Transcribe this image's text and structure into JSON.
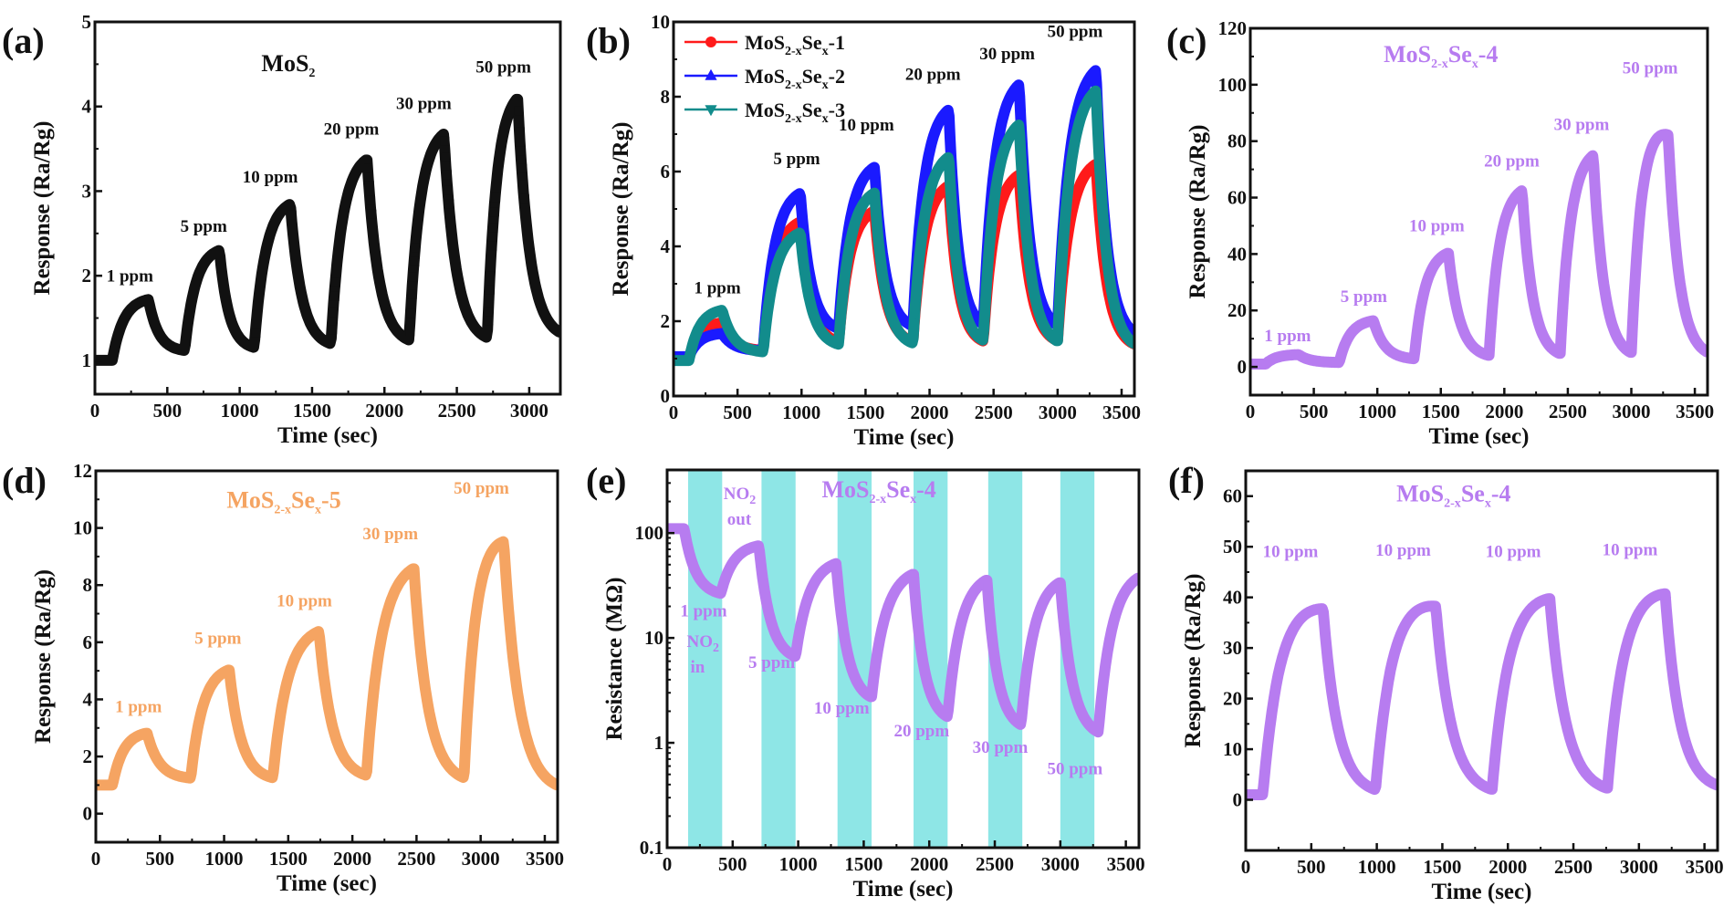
{
  "figure": {
    "colors": {
      "black": "#111111",
      "red": "#ff1a1a",
      "blue": "#1a1aff",
      "teal": "#128c8c",
      "purple": "#b77cf0",
      "orange": "#f5a462",
      "cyan_band": "#8ee6e6"
    }
  },
  "chart_data": [
    {
      "id": "a",
      "panel_label": "(a)",
      "type": "line",
      "title": "MoS2",
      "title_parts": {
        "base": "MoS",
        "sub": "2",
        "rest": ""
      },
      "title_color": "black",
      "xlabel": "Time (sec)",
      "ylabel": "Response (Ra/Rg)",
      "xlim": [
        0,
        3215
      ],
      "ylim": [
        0.6,
        5
      ],
      "xticks": [
        0,
        500,
        1000,
        1500,
        2000,
        2500,
        3000
      ],
      "yticks": [
        1,
        2,
        3,
        4,
        5
      ],
      "ytick_labels": [
        "1",
        "2",
        "3",
        "4",
        "5"
      ],
      "marker": "square",
      "series": [
        {
          "name": "MoS2",
          "color": "black",
          "baseline_start": 1.0,
          "cycles": [
            {
              "on": 120,
              "off": 370,
              "peak": 1.75,
              "recover_to": 1.1,
              "label": "1 ppm"
            },
            {
              "on": 620,
              "off": 860,
              "peak": 2.35,
              "recover_to": 1.12,
              "label": "5 ppm"
            },
            {
              "on": 1100,
              "off": 1350,
              "peak": 2.92,
              "recover_to": 1.15,
              "label": "10 ppm"
            },
            {
              "on": 1630,
              "off": 1880,
              "peak": 3.47,
              "recover_to": 1.18,
              "label": "20 ppm"
            },
            {
              "on": 2170,
              "off": 2410,
              "peak": 3.78,
              "recover_to": 1.2,
              "label": "30 ppm"
            },
            {
              "on": 2710,
              "off": 2920,
              "peak": 4.22,
              "recover_to": 1.25,
              "label": "50 ppm"
            }
          ],
          "end_time": 3215
        }
      ],
      "annotations": [
        {
          "text": "1 ppm",
          "x": 80,
          "y": 1.93
        },
        {
          "text": "5 ppm",
          "x": 590,
          "y": 2.52
        },
        {
          "text": "10 ppm",
          "x": 1020,
          "y": 3.1
        },
        {
          "text": "20 ppm",
          "x": 1580,
          "y": 3.67
        },
        {
          "text": "30 ppm",
          "x": 2080,
          "y": 3.97
        },
        {
          "text": "50 ppm",
          "x": 2630,
          "y": 4.4
        }
      ],
      "title_pos": {
        "x": 1150,
        "y": 4.42
      }
    },
    {
      "id": "b",
      "panel_label": "(b)",
      "type": "line",
      "xlabel": "Time (sec)",
      "ylabel": "Response (Ra/Rg)",
      "xlim": [
        0,
        3600
      ],
      "ylim": [
        0,
        10
      ],
      "xticks": [
        0,
        500,
        1000,
        1500,
        2000,
        2500,
        3000,
        3500
      ],
      "yticks": [
        0,
        2,
        4,
        6,
        8,
        10
      ],
      "ytick_labels": [
        "0",
        "2",
        "4",
        "6",
        "8",
        "10"
      ],
      "legend": {
        "position": "top-left"
      },
      "series": [
        {
          "name": "MoS2-xSex-1",
          "name_parts": {
            "base": "MoS",
            "sub": "2-x",
            "mid": "Se",
            "sub2": "x",
            "rest": "-1"
          },
          "color": "red",
          "marker": "circle",
          "baseline_start": 1.0,
          "cycles": [
            {
              "on": 120,
              "off": 380,
              "peak": 2.0,
              "recover_to": 1.2
            },
            {
              "on": 700,
              "off": 990,
              "peak": 4.8,
              "recover_to": 1.35
            },
            {
              "on": 1290,
              "off": 1570,
              "peak": 5.1,
              "recover_to": 1.35
            },
            {
              "on": 1870,
              "off": 2150,
              "peak": 5.8,
              "recover_to": 1.35
            },
            {
              "on": 2420,
              "off": 2700,
              "peak": 6.1,
              "recover_to": 1.35
            },
            {
              "on": 3000,
              "off": 3300,
              "peak": 6.4,
              "recover_to": 1.25
            }
          ],
          "end_time": 3600
        },
        {
          "name": "MoS2-xSex-2",
          "name_parts": {
            "base": "MoS",
            "sub": "2-x",
            "mid": "Se",
            "sub2": "x",
            "rest": "-2"
          },
          "color": "blue",
          "marker": "triangle-up",
          "baseline_start": 1.05,
          "cycles": [
            {
              "on": 120,
              "off": 380,
              "peak": 1.7,
              "recover_to": 1.2
            },
            {
              "on": 700,
              "off": 990,
              "peak": 5.6,
              "recover_to": 1.7
            },
            {
              "on": 1290,
              "off": 1570,
              "peak": 6.3,
              "recover_to": 1.75
            },
            {
              "on": 1870,
              "off": 2150,
              "peak": 7.9,
              "recover_to": 1.75
            },
            {
              "on": 2420,
              "off": 2700,
              "peak": 8.6,
              "recover_to": 1.7
            },
            {
              "on": 3000,
              "off": 3300,
              "peak": 9.0,
              "recover_to": 1.5
            }
          ],
          "end_time": 3600
        },
        {
          "name": "MoS2-xSex-3",
          "name_parts": {
            "base": "MoS",
            "sub": "2-x",
            "mid": "Se",
            "sub2": "x",
            "rest": "-3"
          },
          "color": "teal",
          "marker": "triangle-down",
          "baseline_start": 0.95,
          "cycles": [
            {
              "on": 120,
              "off": 380,
              "peak": 2.35,
              "recover_to": 1.15
            },
            {
              "on": 700,
              "off": 990,
              "peak": 4.5,
              "recover_to": 1.3
            },
            {
              "on": 1290,
              "off": 1570,
              "peak": 5.6,
              "recover_to": 1.3
            },
            {
              "on": 1870,
              "off": 2150,
              "peak": 6.6,
              "recover_to": 1.35
            },
            {
              "on": 2420,
              "off": 2700,
              "peak": 7.5,
              "recover_to": 1.3
            },
            {
              "on": 3000,
              "off": 3300,
              "peak": 8.45,
              "recover_to": 1.2
            }
          ],
          "end_time": 3600
        }
      ],
      "annotations": [
        {
          "text": "1 ppm",
          "x": 160,
          "y": 2.75
        },
        {
          "text": "5 ppm",
          "x": 780,
          "y": 6.2
        },
        {
          "text": "10 ppm",
          "x": 1290,
          "y": 7.1
        },
        {
          "text": "20 ppm",
          "x": 1810,
          "y": 8.45
        },
        {
          "text": "30 ppm",
          "x": 2390,
          "y": 9.0
        },
        {
          "text": "50 ppm",
          "x": 2920,
          "y": 9.6
        }
      ]
    },
    {
      "id": "c",
      "panel_label": "(c)",
      "type": "line",
      "title": "MoS2-xSex-4",
      "title_parts": {
        "base": "MoS",
        "sub": "2-x",
        "mid": "Se",
        "sub2": "x",
        "rest": "-4"
      },
      "title_color": "purple",
      "xlabel": "Time (sec)",
      "ylabel": "Response (Ra/Rg)",
      "xlim": [
        0,
        3600
      ],
      "ylim": [
        -10,
        120
      ],
      "xticks": [
        0,
        500,
        1000,
        1500,
        2000,
        2500,
        3000,
        3500
      ],
      "yticks": [
        0,
        20,
        40,
        60,
        80,
        100,
        120
      ],
      "ytick_labels": [
        "0",
        "20",
        "40",
        "60",
        "80",
        "100",
        "120"
      ],
      "marker": "diamond",
      "series": [
        {
          "name": "MoS2-xSex-4",
          "color": "purple",
          "baseline_start": 1.0,
          "cycles": [
            {
              "on": 120,
              "off": 380,
              "peak": 4.5,
              "recover_to": 1.5
            },
            {
              "on": 700,
              "off": 970,
              "peak": 17,
              "recover_to": 2.5
            },
            {
              "on": 1290,
              "off": 1560,
              "peak": 42,
              "recover_to": 3
            },
            {
              "on": 1880,
              "off": 2140,
              "peak": 65,
              "recover_to": 3
            },
            {
              "on": 2440,
              "off": 2700,
              "peak": 78,
              "recover_to": 3
            },
            {
              "on": 3000,
              "off": 3290,
              "peak": 98,
              "recover_to": 3,
              "peak_decay": 86
            }
          ],
          "end_time": 3600
        }
      ],
      "annotations": [
        {
          "text": "1 ppm",
          "x": 110,
          "y": 9
        },
        {
          "text": "5 ppm",
          "x": 710,
          "y": 23
        },
        {
          "text": "10 ppm",
          "x": 1250,
          "y": 48
        },
        {
          "text": "20 ppm",
          "x": 1840,
          "y": 71
        },
        {
          "text": "30 ppm",
          "x": 2390,
          "y": 84
        },
        {
          "text": "50 ppm",
          "x": 2930,
          "y": 104
        }
      ],
      "title_pos": {
        "x": 1050,
        "y": 108
      }
    },
    {
      "id": "d",
      "panel_label": "(d)",
      "type": "line",
      "title": "MoS2-xSex-5",
      "title_parts": {
        "base": "MoS",
        "sub": "2-x",
        "mid": "Se",
        "sub2": "x",
        "rest": "-5"
      },
      "title_color": "orange",
      "xlabel": "Time (sec)",
      "ylabel": "Response (Ra/Rg)",
      "xlim": [
        0,
        3600
      ],
      "ylim": [
        -1,
        12
      ],
      "xticks": [
        0,
        500,
        1000,
        1500,
        2000,
        2500,
        3000,
        3500
      ],
      "yticks": [
        0,
        2,
        4,
        6,
        8,
        10,
        12
      ],
      "ytick_labels": [
        "0",
        "2",
        "4",
        "6",
        "8",
        "10",
        "12"
      ],
      "marker": "triangle-left",
      "series": [
        {
          "name": "MoS2-xSex-5",
          "color": "orange",
          "baseline_start": 1.0,
          "cycles": [
            {
              "on": 130,
              "off": 400,
              "peak": 2.9,
              "recover_to": 1.2
            },
            {
              "on": 740,
              "off": 1040,
              "peak": 5.2,
              "recover_to": 1.15
            },
            {
              "on": 1380,
              "off": 1740,
              "peak": 6.6,
              "recover_to": 1.2
            },
            {
              "on": 2110,
              "off": 2480,
              "peak": 8.9,
              "recover_to": 1.05
            },
            {
              "on": 2870,
              "off": 3180,
              "peak": 10.5,
              "recover_to": 0.75,
              "peak_decay": 9.9
            }
          ],
          "end_time": 3600
        }
      ],
      "annotations": [
        {
          "text": "1 ppm",
          "x": 150,
          "y": 3.55
        },
        {
          "text": "5 ppm",
          "x": 770,
          "y": 5.95
        },
        {
          "text": "10 ppm",
          "x": 1410,
          "y": 7.25
        },
        {
          "text": "30 ppm",
          "x": 2080,
          "y": 9.6
        },
        {
          "text": "50 ppm",
          "x": 2790,
          "y": 11.2
        }
      ],
      "title_pos": {
        "x": 1020,
        "y": 10.7
      }
    },
    {
      "id": "e",
      "panel_label": "(e)",
      "type": "line",
      "yscale": "log",
      "title": "MoS2-xSex-4",
      "title_parts": {
        "base": "MoS",
        "sub": "2-x",
        "mid": "Se",
        "sub2": "x",
        "rest": "-4"
      },
      "title_color": "purple",
      "xlabel": "Time (sec)",
      "ylabel": "Resistance (MΩ)",
      "xlim": [
        0,
        3600
      ],
      "ylim": [
        0.1,
        400
      ],
      "xticks": [
        0,
        500,
        1000,
        1500,
        2000,
        2500,
        3000,
        3500
      ],
      "yticks": [
        0.1,
        1,
        10,
        100
      ],
      "ytick_labels": [
        "0.1",
        "1",
        "10",
        "100"
      ],
      "marker": "square",
      "gas_on_bands": [
        [
          160,
          420
        ],
        [
          720,
          980
        ],
        [
          1300,
          1560
        ],
        [
          1880,
          2140
        ],
        [
          2450,
          2710
        ],
        [
          3000,
          3260
        ]
      ],
      "series": [
        {
          "name": "MoS2-xSex-4",
          "color": "purple",
          "baseline_start": 110,
          "cycles": [
            {
              "on": 130,
              "off": 410,
              "trough": 25,
              "recover_to": 80
            },
            {
              "on": 700,
              "off": 980,
              "trough": 6,
              "recover_to": 57
            },
            {
              "on": 1290,
              "off": 1560,
              "trough": 2.4,
              "recover_to": 47
            },
            {
              "on": 1880,
              "off": 2140,
              "trough": 1.55,
              "recover_to": 42
            },
            {
              "on": 2440,
              "off": 2700,
              "trough": 1.3,
              "recover_to": 40
            },
            {
              "on": 3000,
              "off": 3290,
              "trough": 1.1,
              "recover_to": 45
            }
          ],
          "end_time": 3600
        }
      ],
      "annotations": [
        {
          "text": "1 ppm",
          "x": 100,
          "y": 16
        },
        {
          "text": "5 ppm",
          "x": 620,
          "y": 5.2
        },
        {
          "text": "10 ppm",
          "x": 1120,
          "y": 1.9
        },
        {
          "text": "20 ppm",
          "x": 1730,
          "y": 1.15
        },
        {
          "text": "30 ppm",
          "x": 2330,
          "y": 0.8
        },
        {
          "text": "50 ppm",
          "x": 2900,
          "y": 0.5
        }
      ],
      "gas_labels": [
        {
          "text": "NO2",
          "base": "NO",
          "sub": "2",
          "line2": "out",
          "x": 430,
          "y": 210,
          "y2": 120
        },
        {
          "text": "NO2",
          "base": "NO",
          "sub": "2",
          "line2": "in",
          "x": 150,
          "y": 8.2,
          "y2": 4.7
        }
      ],
      "title_pos": {
        "x": 1180,
        "y": 220
      }
    },
    {
      "id": "f",
      "panel_label": "(f)",
      "type": "line",
      "title": "MoS2-xSex-4",
      "title_parts": {
        "base": "MoS",
        "sub": "2-x",
        "mid": "Se",
        "sub2": "x",
        "rest": "-4"
      },
      "title_color": "purple",
      "xlabel": "Time (sec)",
      "ylabel": "Response (Ra/Rg)",
      "xlim": [
        0,
        3600
      ],
      "ylim": [
        -10,
        65
      ],
      "xticks": [
        0,
        500,
        1000,
        1500,
        2000,
        2500,
        3000,
        3500
      ],
      "yticks": [
        0,
        10,
        20,
        30,
        40,
        50,
        60
      ],
      "ytick_labels": [
        "0",
        "10",
        "20",
        "30",
        "40",
        "50",
        "60"
      ],
      "marker": "triangle-down",
      "series": [
        {
          "name": "MoS2-xSex-4",
          "color": "purple",
          "baseline_start": 1.0,
          "cycles": [
            {
              "on": 130,
              "off": 590,
              "peak": 43.5,
              "peak_decay": 39.5,
              "recover_to": 1.0
            },
            {
              "on": 990,
              "off": 1450,
              "peak": 45,
              "peak_decay": 40,
              "recover_to": 1.0
            },
            {
              "on": 1880,
              "off": 2320,
              "peak": 44,
              "peak_decay": 41.5,
              "recover_to": 1.2
            },
            {
              "on": 2760,
              "off": 3200,
              "peak": 45.8,
              "peak_decay": 42.5,
              "recover_to": 1.8
            }
          ],
          "end_time": 3600
        }
      ],
      "annotations": [
        {
          "text": "10 ppm",
          "x": 130,
          "y": 48
        },
        {
          "text": "10 ppm",
          "x": 990,
          "y": 48.2
        },
        {
          "text": "10 ppm",
          "x": 1830,
          "y": 48
        },
        {
          "text": "10 ppm",
          "x": 2720,
          "y": 48.3
        }
      ],
      "title_pos": {
        "x": 1150,
        "y": 59
      }
    }
  ]
}
